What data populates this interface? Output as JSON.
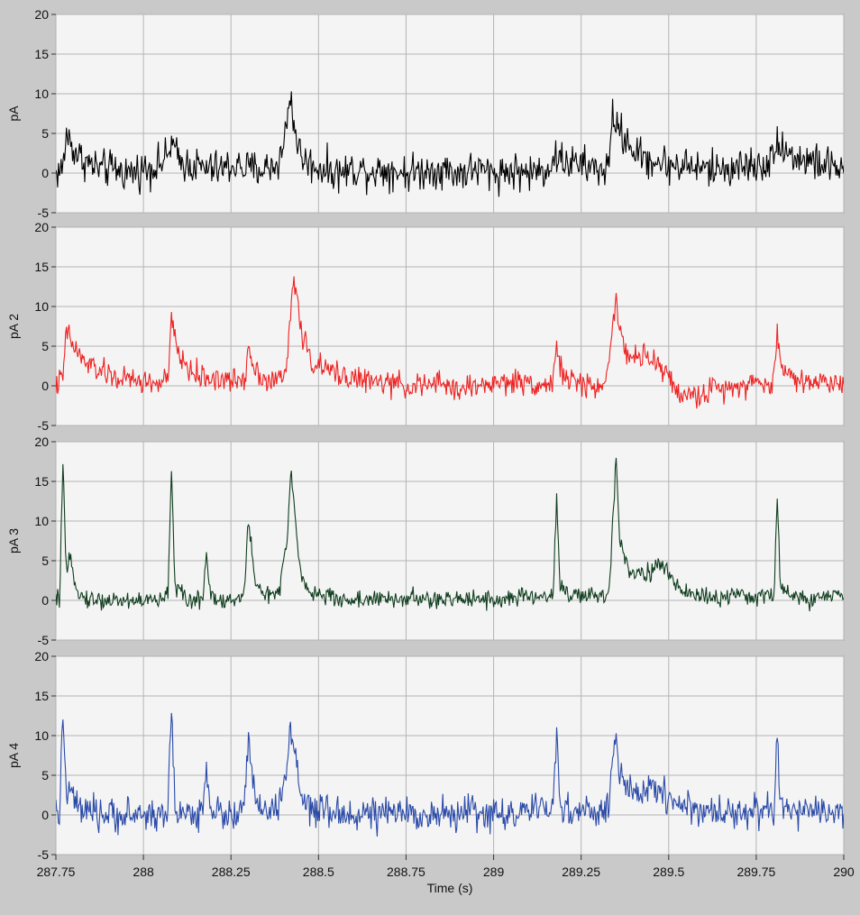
{
  "chart_data": [
    {
      "type": "line",
      "ylabel": "pA",
      "color": "#000000",
      "ylim": [
        -5,
        20
      ],
      "xlim": [
        287.75,
        290
      ],
      "yticks": [
        "20",
        "15",
        "10",
        "5",
        "0",
        "-5"
      ],
      "x": [
        287.75,
        287.77,
        287.78,
        287.8,
        287.82,
        287.85,
        287.88,
        287.92,
        287.96,
        288.0,
        288.04,
        288.07,
        288.08,
        288.1,
        288.14,
        288.18,
        288.22,
        288.26,
        288.3,
        288.34,
        288.38,
        288.4,
        288.41,
        288.42,
        288.43,
        288.45,
        288.48,
        288.52,
        288.56,
        288.6,
        288.65,
        288.7,
        288.75,
        288.8,
        288.85,
        288.9,
        288.95,
        289.0,
        289.05,
        289.1,
        289.15,
        289.18,
        289.2,
        289.25,
        289.3,
        289.33,
        289.34,
        289.35,
        289.38,
        289.42,
        289.46,
        289.5,
        289.55,
        289.6,
        289.65,
        289.7,
        289.75,
        289.8,
        289.81,
        289.83,
        289.86,
        289.9,
        289.95,
        290.0
      ],
      "values": [
        0,
        0.5,
        5,
        3,
        2,
        1,
        0.5,
        0.5,
        0,
        0.5,
        1,
        2,
        4,
        1.5,
        1,
        0.5,
        0.5,
        1,
        0.5,
        0.5,
        1,
        3,
        7,
        10,
        6,
        2,
        1,
        0.5,
        0,
        0.5,
        0.3,
        0.5,
        0,
        0.3,
        0.5,
        0,
        0.5,
        0,
        0.3,
        0,
        0.5,
        2,
        1.5,
        1,
        0.5,
        0.5,
        8,
        6,
        4,
        2,
        1.5,
        1,
        1,
        0.5,
        0.5,
        0.8,
        1,
        1.5,
        5,
        3,
        2,
        1.5,
        1,
        0.5
      ],
      "noise": 1.8
    },
    {
      "type": "line",
      "ylabel": "pA 2",
      "color": "#ee2222",
      "ylim": [
        -5,
        20
      ],
      "xlim": [
        287.75,
        290
      ],
      "yticks": [
        "20",
        "15",
        "10",
        "5",
        "0",
        "-5"
      ],
      "x": [
        287.75,
        287.77,
        287.78,
        287.8,
        287.83,
        287.87,
        287.92,
        288.0,
        288.05,
        288.07,
        288.08,
        288.1,
        288.13,
        288.17,
        288.2,
        288.25,
        288.29,
        288.3,
        288.32,
        288.36,
        288.4,
        288.41,
        288.42,
        288.43,
        288.45,
        288.48,
        288.52,
        288.56,
        288.6,
        288.65,
        288.7,
        288.75,
        288.8,
        288.85,
        288.9,
        288.95,
        289.0,
        289.05,
        289.1,
        289.15,
        289.17,
        289.18,
        289.19,
        289.22,
        289.27,
        289.32,
        289.34,
        289.35,
        289.36,
        289.38,
        289.42,
        289.46,
        289.48,
        289.5,
        289.53,
        289.57,
        289.62,
        289.68,
        289.74,
        289.79,
        289.8,
        289.81,
        289.82,
        289.85,
        289.9,
        289.95,
        290.0
      ],
      "values": [
        0,
        1,
        7,
        5,
        3,
        2,
        1,
        0.5,
        0.3,
        1,
        8,
        4,
        2,
        1,
        1,
        0.5,
        1,
        5,
        2,
        0.5,
        1,
        3,
        9,
        14,
        7,
        3,
        2,
        1.5,
        1,
        0.5,
        0.3,
        0,
        0,
        0.3,
        -0.5,
        0,
        0.3,
        0.5,
        0.5,
        0,
        0.5,
        6,
        2,
        0.5,
        0,
        0,
        8,
        12,
        6,
        4,
        3.5,
        3,
        2.5,
        1,
        -1,
        -1.5,
        -0.5,
        0,
        0.5,
        0,
        0.5,
        7,
        3,
        1,
        0.5,
        0.5,
        0.5
      ],
      "noise": 1.2
    },
    {
      "type": "line",
      "ylabel": "pA 3",
      "color": "#0f3d1e",
      "ylim": [
        -5,
        20
      ],
      "xlim": [
        287.75,
        290
      ],
      "yticks": [
        "20",
        "15",
        "10",
        "5",
        "0",
        "-5"
      ],
      "x": [
        287.75,
        287.76,
        287.77,
        287.78,
        287.79,
        287.82,
        287.86,
        287.92,
        288.0,
        288.06,
        288.07,
        288.08,
        288.09,
        288.12,
        288.16,
        288.17,
        288.18,
        288.19,
        288.22,
        288.26,
        288.28,
        288.29,
        288.3,
        288.32,
        288.36,
        288.39,
        288.4,
        288.41,
        288.42,
        288.43,
        288.45,
        288.48,
        288.52,
        288.58,
        288.64,
        288.7,
        288.76,
        288.82,
        288.88,
        288.94,
        289.0,
        289.06,
        289.12,
        289.16,
        289.17,
        289.18,
        289.19,
        289.22,
        289.28,
        289.32,
        289.33,
        289.34,
        289.35,
        289.36,
        289.39,
        289.43,
        289.46,
        289.48,
        289.51,
        289.55,
        289.6,
        289.66,
        289.72,
        289.78,
        289.8,
        289.81,
        289.82,
        289.85,
        289.9,
        289.95,
        290.0
      ],
      "values": [
        0,
        0,
        17,
        3,
        5,
        0.5,
        0,
        0,
        0,
        0,
        1,
        17,
        2,
        0,
        0,
        1,
        6,
        1,
        0,
        0,
        0,
        3,
        10,
        2,
        0.5,
        1,
        5,
        7,
        16,
        12,
        3,
        1,
        0.5,
        0,
        0.2,
        0,
        0.3,
        0,
        0,
        0.5,
        0,
        0.3,
        0.5,
        0.5,
        1,
        13,
        2,
        0.5,
        0.5,
        0.5,
        1,
        10,
        18,
        8,
        3.5,
        3.5,
        4,
        4.5,
        2.5,
        1,
        0.5,
        0.3,
        0.5,
        0.5,
        0.5,
        12,
        2,
        0.5,
        0,
        0.5,
        0.5
      ],
      "noise": 0.9
    },
    {
      "type": "line",
      "ylabel": "pA 4",
      "color": "#2a4aa8",
      "ylim": [
        -5,
        20
      ],
      "xlim": [
        287.75,
        290
      ],
      "yticks": [
        "20",
        "15",
        "10",
        "5",
        "0",
        "-5"
      ],
      "x": [
        287.75,
        287.76,
        287.77,
        287.78,
        287.79,
        287.82,
        287.86,
        287.92,
        288.0,
        288.06,
        288.07,
        288.08,
        288.09,
        288.12,
        288.16,
        288.17,
        288.18,
        288.19,
        288.22,
        288.26,
        288.28,
        288.29,
        288.3,
        288.32,
        288.36,
        288.39,
        288.4,
        288.41,
        288.42,
        288.43,
        288.45,
        288.48,
        288.52,
        288.58,
        288.64,
        288.7,
        288.76,
        288.82,
        288.88,
        288.94,
        289.0,
        289.06,
        289.12,
        289.16,
        289.17,
        289.18,
        289.19,
        289.22,
        289.28,
        289.32,
        289.33,
        289.34,
        289.35,
        289.36,
        289.39,
        289.43,
        289.46,
        289.48,
        289.51,
        289.55,
        289.6,
        289.66,
        289.72,
        289.78,
        289.8,
        289.81,
        289.82,
        289.85,
        289.9,
        289.95,
        290.0
      ],
      "values": [
        0,
        0,
        13,
        2,
        3,
        0.5,
        0,
        0,
        0,
        0,
        1,
        13,
        1,
        0,
        0,
        1,
        7,
        1,
        0,
        0,
        0,
        2,
        10,
        1,
        0.5,
        1,
        4,
        6,
        12,
        8,
        2,
        0.5,
        0.3,
        0,
        0.2,
        0,
        0.3,
        0,
        0,
        0.5,
        0,
        0.3,
        0.5,
        0.5,
        1,
        11,
        1,
        0.5,
        0.3,
        0.5,
        1,
        8,
        10,
        5,
        2.5,
        3,
        3.5,
        3,
        2,
        1,
        0.5,
        0.3,
        0.5,
        0.5,
        0.5,
        10,
        1,
        0.5,
        0,
        0.5,
        0.5
      ],
      "noise": 1.6
    }
  ],
  "xaxis": {
    "label": "Time (s)",
    "ticks": [
      "287.75",
      "288",
      "288.25",
      "288.5",
      "288.75",
      "289",
      "289.25",
      "289.5",
      "289.75",
      "290"
    ]
  }
}
